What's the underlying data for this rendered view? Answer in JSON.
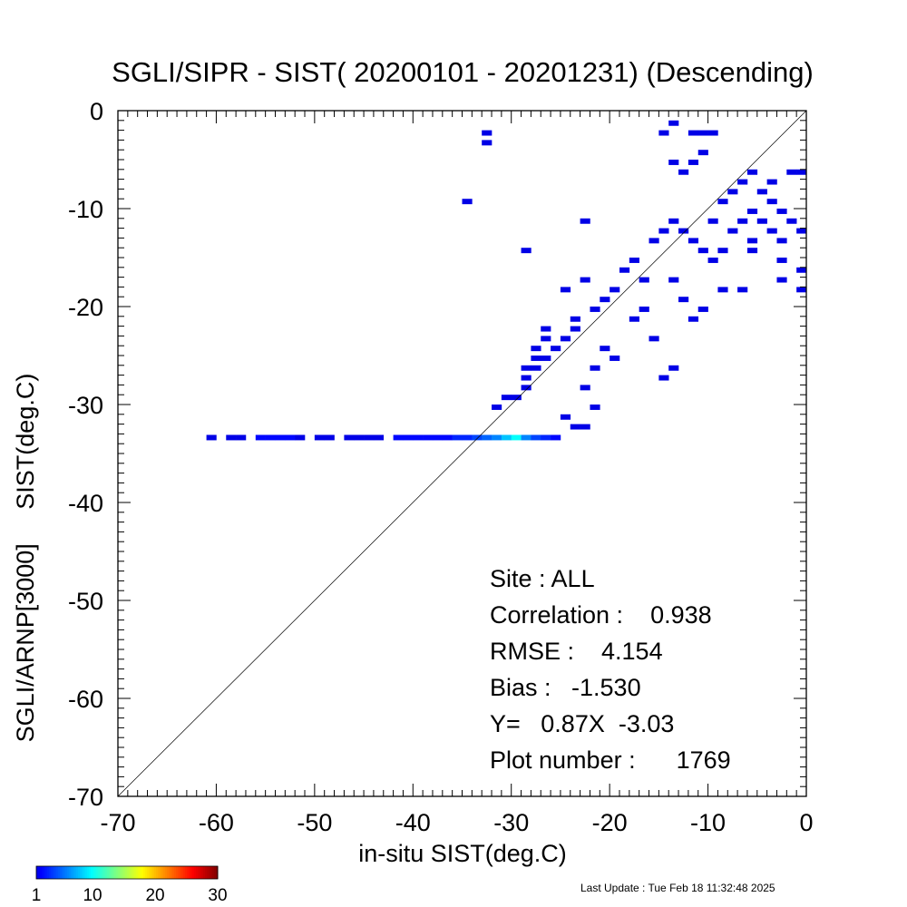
{
  "chart_data": {
    "type": "heatmap",
    "title": "SGLI/SIPR - SIST( 20200101 - 20201231) (Descending)",
    "xlabel": "in-situ SIST(deg.C)",
    "ylabel": "SGLI/ARNP[3000]     SIST(deg.C)",
    "xlim": [
      -70,
      0
    ],
    "ylim": [
      -70,
      0
    ],
    "x_ticks": [
      "-70",
      "-60",
      "-50",
      "-40",
      "-30",
      "-20",
      "-10",
      "0"
    ],
    "y_ticks": [
      "-70",
      "-60",
      "-50",
      "-40",
      "-30",
      "-20",
      "-10",
      "0"
    ],
    "one_to_one_line": true,
    "bin_size": 1,
    "stats": [
      "Site : ALL",
      "Correlation :    0.938",
      "RMSE :    4.154",
      "Bias :   -1.530",
      "Y=   0.87X  -3.03",
      "Plot number :      1769"
    ],
    "colorbar": {
      "range": [
        1,
        30
      ],
      "tick_labels": [
        "1",
        "10",
        "20",
        "30"
      ],
      "colormap": "jet"
    },
    "points": [
      [
        -60.5,
        -33.6,
        1
      ],
      [
        -58.5,
        -33.6,
        1
      ],
      [
        -57.5,
        -33.6,
        1
      ],
      [
        -55.5,
        -33.6,
        2
      ],
      [
        -54.5,
        -33.6,
        2
      ],
      [
        -53.5,
        -33.6,
        2
      ],
      [
        -52.5,
        -33.6,
        2
      ],
      [
        -51.5,
        -33.6,
        1
      ],
      [
        -49.5,
        -33.6,
        1
      ],
      [
        -48.5,
        -33.6,
        1
      ],
      [
        -46.5,
        -33.6,
        1
      ],
      [
        -45.5,
        -33.6,
        1
      ],
      [
        -44.5,
        -33.6,
        1
      ],
      [
        -43.5,
        -33.6,
        1
      ],
      [
        -41.5,
        -33.6,
        2
      ],
      [
        -40.5,
        -33.6,
        2
      ],
      [
        -39.5,
        -33.6,
        2
      ],
      [
        -38.5,
        -33.6,
        2
      ],
      [
        -37.5,
        -33.6,
        2
      ],
      [
        -36.5,
        -33.6,
        2
      ],
      [
        -35.5,
        -33.6,
        3
      ],
      [
        -34.5,
        -33.6,
        3
      ],
      [
        -33.5,
        -33.6,
        4
      ],
      [
        -32.5,
        -33.6,
        5
      ],
      [
        -31.5,
        -33.6,
        6
      ],
      [
        -30.5,
        -33.6,
        8
      ],
      [
        -29.5,
        -33.6,
        10
      ],
      [
        -28.5,
        -33.6,
        6
      ],
      [
        -27.5,
        -33.6,
        4
      ],
      [
        -26.5,
        -33.6,
        3
      ],
      [
        -25.5,
        -33.6,
        2
      ],
      [
        -32.5,
        -2.5,
        1
      ],
      [
        -32.5,
        -3.5,
        1
      ],
      [
        -34.5,
        -9.5,
        1
      ],
      [
        -22.5,
        -11.5,
        1
      ],
      [
        -28.5,
        -14.5,
        1
      ],
      [
        -22.5,
        -17.5,
        1
      ],
      [
        -24.5,
        -18.5,
        1
      ],
      [
        -23.5,
        -21.5,
        1
      ],
      [
        -26.5,
        -22.5,
        1
      ],
      [
        -26.5,
        -23.5,
        1
      ],
      [
        -27.5,
        -24.5,
        1
      ],
      [
        -27.5,
        -25.5,
        1
      ],
      [
        -28.5,
        -26.5,
        1
      ],
      [
        -28.5,
        -28.5,
        1
      ],
      [
        -29.5,
        -29.5,
        1
      ],
      [
        -31.5,
        -30.5,
        1
      ],
      [
        -20.5,
        -24.5,
        1
      ],
      [
        -19.5,
        -25.5,
        1
      ],
      [
        -21.5,
        -26.5,
        1
      ],
      [
        -22.5,
        -28.5,
        1
      ],
      [
        -21.5,
        -30.5,
        1
      ],
      [
        -24.5,
        -31.5,
        1
      ],
      [
        -23.5,
        -32.5,
        1
      ],
      [
        -22.5,
        -32.5,
        1
      ],
      [
        -14.5,
        -27.5,
        1
      ],
      [
        -13.5,
        -26.5,
        1
      ],
      [
        -15.5,
        -23.5,
        1
      ],
      [
        -17.5,
        -21.5,
        1
      ],
      [
        -11.5,
        -21.5,
        1
      ],
      [
        -10.5,
        -20.5,
        1
      ],
      [
        -16.5,
        -20.5,
        1
      ],
      [
        -12.5,
        -19.5,
        1
      ],
      [
        -16.5,
        -17.5,
        1
      ],
      [
        -8.5,
        -18.5,
        1
      ],
      [
        -6.5,
        -18.5,
        1
      ],
      [
        -0.5,
        -18.5,
        1
      ],
      [
        -2.5,
        -17.5,
        1
      ],
      [
        -13.5,
        -17.5,
        1
      ],
      [
        -5.5,
        -14.5,
        1
      ],
      [
        -2.5,
        -15.5,
        1
      ],
      [
        -0.5,
        -16.5,
        1
      ],
      [
        -0.5,
        -12.5,
        1
      ],
      [
        -1.5,
        -11.5,
        1
      ],
      [
        -2.5,
        -10.5,
        1
      ],
      [
        -3.5,
        -9.5,
        1
      ],
      [
        -4.5,
        -8.5,
        1
      ],
      [
        -1.5,
        -6.5,
        1
      ],
      [
        -0.5,
        -6.5,
        1
      ],
      [
        -3.5,
        -7.5,
        1
      ],
      [
        -5.5,
        -6.5,
        1
      ],
      [
        -6.5,
        -7.5,
        1
      ],
      [
        -7.5,
        -8.5,
        1
      ],
      [
        -8.5,
        -9.5,
        1
      ],
      [
        -10.5,
        -4.5,
        1
      ],
      [
        -11.5,
        -5.5,
        1
      ],
      [
        -12.5,
        -6.5,
        1
      ],
      [
        -13.5,
        -5.5,
        1
      ],
      [
        -14.5,
        -2.5,
        1
      ],
      [
        -11.5,
        -2.5,
        1
      ],
      [
        -10.5,
        -2.5,
        1
      ],
      [
        -9.5,
        -2.5,
        1
      ],
      [
        -13.5,
        -1.5,
        1
      ],
      [
        -12.5,
        -12.5,
        1
      ],
      [
        -11.5,
        -13.5,
        1
      ],
      [
        -10.5,
        -14.5,
        1
      ],
      [
        -9.5,
        -15.5,
        1
      ],
      [
        -8.5,
        -14.5,
        1
      ],
      [
        -7.5,
        -12.5,
        1
      ],
      [
        -6.5,
        -11.5,
        1
      ],
      [
        -5.5,
        -10.5,
        1
      ],
      [
        -15.5,
        -13.5,
        1
      ],
      [
        -14.5,
        -12.5,
        1
      ],
      [
        -13.5,
        -11.5,
        1
      ],
      [
        -17.5,
        -15.5,
        1
      ],
      [
        -18.5,
        -16.5,
        1
      ],
      [
        -19.5,
        -18.5,
        1
      ],
      [
        -20.5,
        -19.5,
        1
      ],
      [
        -21.5,
        -20.5,
        1
      ],
      [
        -23.5,
        -22.5,
        1
      ],
      [
        -24.5,
        -23.5,
        1
      ],
      [
        -25.5,
        -24.5,
        1
      ],
      [
        -26.5,
        -25.5,
        1
      ],
      [
        -27.5,
        -26.5,
        1
      ],
      [
        -28.5,
        -27.5,
        1
      ],
      [
        -30.5,
        -29.5,
        1
      ],
      [
        -3.5,
        -12.5,
        1
      ],
      [
        -2.5,
        -13.5,
        1
      ],
      [
        -5.5,
        -13.5,
        1
      ],
      [
        -4.5,
        -11.5,
        1
      ],
      [
        -9.5,
        -11.5,
        1
      ]
    ]
  },
  "footer": {
    "last_update": "Last Update : Tue Feb 18 11:32:48 2025"
  }
}
